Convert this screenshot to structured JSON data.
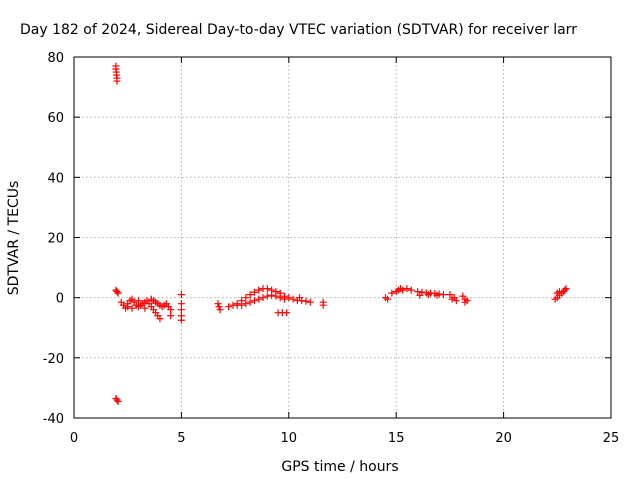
{
  "chart_data": {
    "type": "scatter",
    "title": "Day 182 of 2024, Sidereal Day-to-day VTEC variation (SDTVAR) for receiver larr",
    "xlabel": "GPS time / hours",
    "ylabel": "SDTVAR / TECUs",
    "xlim": [
      0,
      25
    ],
    "ylim": [
      -40,
      80
    ],
    "xticks": [
      0,
      5,
      10,
      15,
      20,
      25
    ],
    "yticks": [
      -40,
      -20,
      0,
      20,
      40,
      60,
      80
    ],
    "grid": true,
    "marker": "plus",
    "color": "#ff0000",
    "series": [
      {
        "name": "SDTVAR",
        "points": [
          [
            1.95,
            77.0
          ],
          [
            1.95,
            76.0
          ],
          [
            1.97,
            75.0
          ],
          [
            1.98,
            74.0
          ],
          [
            2.0,
            73.0
          ],
          [
            2.0,
            72.0
          ],
          [
            1.95,
            2.5
          ],
          [
            2.0,
            2.0
          ],
          [
            2.05,
            1.5
          ],
          [
            1.95,
            -33.5
          ],
          [
            2.0,
            -34.0
          ],
          [
            2.05,
            -34.5
          ],
          [
            2.2,
            -1.5
          ],
          [
            2.3,
            -2.5
          ],
          [
            2.4,
            -3.5
          ],
          [
            2.5,
            -2.0
          ],
          [
            2.6,
            -1.0
          ],
          [
            2.7,
            -0.5
          ],
          [
            2.8,
            -1.5
          ],
          [
            2.9,
            -2.5
          ],
          [
            3.0,
            -3.0
          ],
          [
            3.1,
            -2.5
          ],
          [
            3.2,
            -2.0
          ],
          [
            3.3,
            -1.5
          ],
          [
            3.4,
            -1.0
          ],
          [
            3.5,
            -2.0
          ],
          [
            3.6,
            -3.0
          ],
          [
            3.7,
            -4.0
          ],
          [
            3.8,
            -5.0
          ],
          [
            3.9,
            -6.0
          ],
          [
            4.0,
            -7.0
          ],
          [
            3.6,
            -0.5
          ],
          [
            3.7,
            -1.0
          ],
          [
            3.8,
            -1.5
          ],
          [
            3.9,
            -2.0
          ],
          [
            4.0,
            -2.5
          ],
          [
            4.1,
            -3.0
          ],
          [
            4.2,
            -2.5
          ],
          [
            4.3,
            -2.0
          ],
          [
            4.4,
            -3.0
          ],
          [
            4.5,
            -4.0
          ],
          [
            4.5,
            -6.0
          ],
          [
            2.5,
            -3.0
          ],
          [
            2.7,
            -3.5
          ],
          [
            3.0,
            -1.0
          ],
          [
            3.3,
            -3.5
          ],
          [
            5.0,
            1.0
          ],
          [
            5.0,
            -2.0
          ],
          [
            5.0,
            -4.0
          ],
          [
            5.0,
            -6.0
          ],
          [
            5.0,
            -7.5
          ],
          [
            6.7,
            -2.0
          ],
          [
            6.75,
            -3.0
          ],
          [
            6.8,
            -4.0
          ],
          [
            7.2,
            -3.0
          ],
          [
            7.4,
            -2.5
          ],
          [
            7.6,
            -2.0
          ],
          [
            7.8,
            -1.0
          ],
          [
            8.0,
            0.0
          ],
          [
            8.2,
            1.0
          ],
          [
            8.4,
            1.8
          ],
          [
            8.6,
            2.5
          ],
          [
            8.8,
            3.0
          ],
          [
            9.0,
            3.0
          ],
          [
            9.2,
            2.5
          ],
          [
            9.4,
            2.0
          ],
          [
            9.6,
            1.5
          ],
          [
            9.8,
            0.5
          ],
          [
            10.0,
            0.0
          ],
          [
            7.6,
            -2.5
          ],
          [
            7.8,
            -2.5
          ],
          [
            8.0,
            -2.0
          ],
          [
            8.2,
            -1.5
          ],
          [
            8.4,
            -1.0
          ],
          [
            8.6,
            -0.5
          ],
          [
            8.8,
            0.0
          ],
          [
            9.0,
            0.5
          ],
          [
            9.2,
            0.8
          ],
          [
            9.4,
            0.5
          ],
          [
            9.6,
            0.0
          ],
          [
            9.8,
            -0.5
          ],
          [
            9.5,
            -5.0
          ],
          [
            9.7,
            -5.0
          ],
          [
            9.9,
            -5.0
          ],
          [
            10.2,
            -0.5
          ],
          [
            10.4,
            -1.0
          ],
          [
            10.6,
            -1.0
          ],
          [
            10.8,
            -1.2
          ],
          [
            11.0,
            -1.5
          ],
          [
            10.5,
            0.0
          ],
          [
            11.6,
            -1.5
          ],
          [
            11.6,
            -2.5
          ],
          [
            14.5,
            0.0
          ],
          [
            14.6,
            -0.5
          ],
          [
            14.8,
            1.5
          ],
          [
            15.0,
            2.0
          ],
          [
            15.1,
            2.5
          ],
          [
            15.2,
            3.0
          ],
          [
            15.3,
            2.5
          ],
          [
            15.5,
            3.0
          ],
          [
            15.7,
            2.5
          ],
          [
            16.0,
            2.0
          ],
          [
            16.2,
            1.8
          ],
          [
            16.4,
            1.6
          ],
          [
            16.6,
            1.5
          ],
          [
            16.8,
            1.4
          ],
          [
            17.0,
            1.2
          ],
          [
            17.2,
            1.0
          ],
          [
            16.1,
            0.8
          ],
          [
            16.5,
            1.0
          ],
          [
            16.9,
            0.8
          ],
          [
            17.5,
            1.0
          ],
          [
            17.6,
            -0.5
          ],
          [
            17.7,
            0.0
          ],
          [
            17.8,
            -1.0
          ],
          [
            18.1,
            0.5
          ],
          [
            18.2,
            -0.5
          ],
          [
            18.3,
            -1.0
          ],
          [
            18.2,
            -1.5
          ],
          [
            22.4,
            -0.5
          ],
          [
            22.5,
            0.0
          ],
          [
            22.6,
            0.8
          ],
          [
            22.7,
            1.5
          ],
          [
            22.8,
            2.0
          ],
          [
            22.85,
            2.5
          ],
          [
            22.9,
            3.0
          ],
          [
            22.5,
            1.5
          ],
          [
            22.6,
            2.0
          ]
        ]
      }
    ]
  }
}
